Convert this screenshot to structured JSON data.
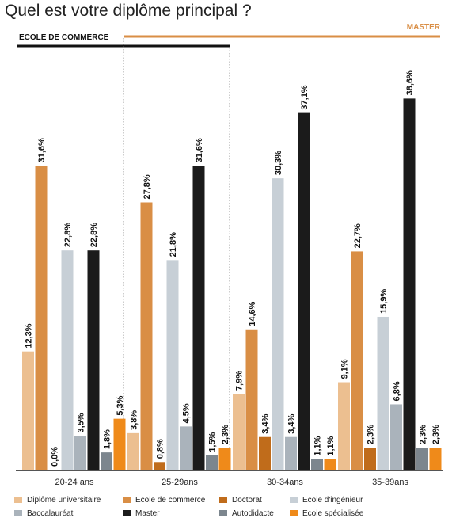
{
  "chart_data": {
    "type": "bar",
    "title": "Quel est votre diplôme principal ?",
    "xlabel": "",
    "ylabel": "",
    "ylim": [
      0,
      40
    ],
    "grid": false,
    "legend_position": "bottom",
    "bands": [
      {
        "label": "ECOLE DE COMMERCE",
        "color": "#111111"
      },
      {
        "label": "MASTER",
        "color": "#d98e45"
      }
    ],
    "categories": [
      "20-24 ans",
      "25-29ans",
      "30-34ans",
      "35-39ans"
    ],
    "series": [
      {
        "name": "Diplôme universitaire",
        "color": "#ecbf90",
        "values": [
          12.3,
          3.8,
          7.9,
          9.1
        ],
        "labels": [
          "12,3%",
          "3,8%",
          "7,9%",
          "9,1%"
        ]
      },
      {
        "name": "Ecole de commerce",
        "color": "#d98e45",
        "values": [
          31.6,
          27.8,
          14.6,
          22.7
        ],
        "labels": [
          "31,6%",
          "27,8%",
          "14,6%",
          "22,7%"
        ]
      },
      {
        "name": "Doctorat",
        "color": "#c06c1b",
        "values": [
          0.0,
          0.8,
          3.4,
          2.3
        ],
        "labels": [
          "0,0%",
          "0,8%",
          "3,4%",
          "2,3%"
        ]
      },
      {
        "name": "Baccalauréat",
        "color": "#aab3bb",
        "values": [
          3.5,
          4.5,
          3.4,
          6.8
        ],
        "labels": [
          "3,5%",
          "4,5%",
          "3,4%",
          "6,8%"
        ]
      },
      {
        "name": "Ecole d'ingénieur",
        "color": "#c7cfd6",
        "values": [
          22.8,
          21.8,
          30.3,
          15.9
        ],
        "labels": [
          "22,8%",
          "21,8%",
          "30,3%",
          "15,9%"
        ]
      },
      {
        "name": "Master",
        "color": "#1b1b1b",
        "values": [
          22.8,
          31.6,
          37.1,
          38.6
        ],
        "labels": [
          "22,8%",
          "31,6%",
          "37,1%",
          "38,6%"
        ]
      },
      {
        "name": "Autodidacte",
        "color": "#7c868e",
        "values": [
          1.8,
          1.5,
          1.1,
          2.3
        ],
        "labels": [
          "1,8%",
          "1,5%",
          "1,1%",
          "2,3%"
        ]
      },
      {
        "name": "Ecole spécialisée",
        "color": "#ef8a1a",
        "values": [
          5.3,
          2.3,
          1.1,
          2.3
        ],
        "labels": [
          "5,3%",
          "2,3%",
          "1,1%",
          "2,3%"
        ]
      }
    ],
    "legend_order": [
      "Diplôme universitaire",
      "Ecole de commerce",
      "Doctorat",
      "Ecole d'ingénieur",
      "Baccalauréat",
      "Master",
      "Autodidacte",
      "Ecole spécialisée"
    ]
  }
}
